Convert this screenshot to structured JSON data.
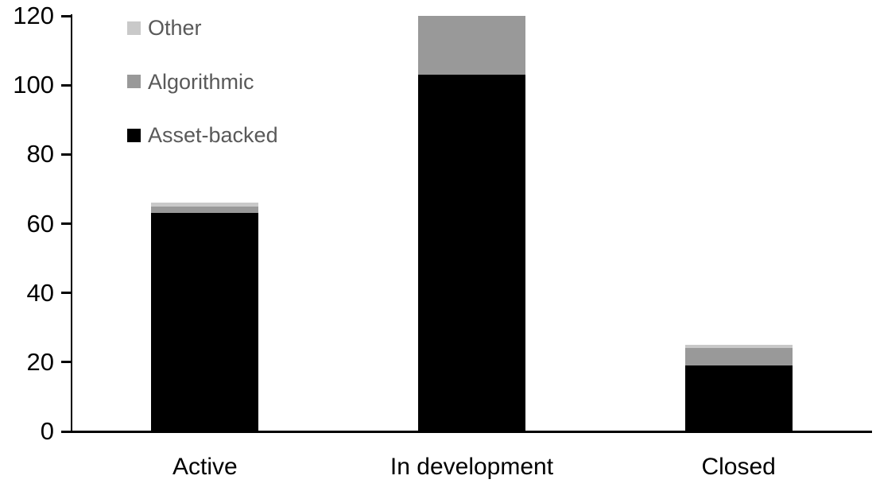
{
  "chart_data": {
    "type": "bar",
    "stacked": true,
    "title": "",
    "xlabel": "",
    "ylabel": "",
    "grid": false,
    "background_color": "#ffffff",
    "axis_color": "#000000",
    "categories": [
      "Active",
      "In development",
      "Closed"
    ],
    "series": [
      {
        "name": "Asset-backed",
        "color": "#000000",
        "values": [
          63,
          103,
          19
        ]
      },
      {
        "name": "Algorithmic",
        "color": "#999999",
        "values": [
          2,
          17,
          5
        ]
      },
      {
        "name": "Other",
        "color": "#c9c9c9",
        "values": [
          1,
          0,
          1
        ]
      }
    ],
    "totals": [
      66,
      120,
      25
    ],
    "y_axis": {
      "min": 0,
      "max": 120,
      "tick_interval": 20,
      "tick_labels": [
        "0",
        "20",
        "40",
        "60",
        "80",
        "100",
        "120"
      ]
    },
    "legend": {
      "position": "top-left",
      "order": [
        "Other",
        "Algorithmic",
        "Asset-backed"
      ],
      "text_color": "#595959"
    }
  }
}
